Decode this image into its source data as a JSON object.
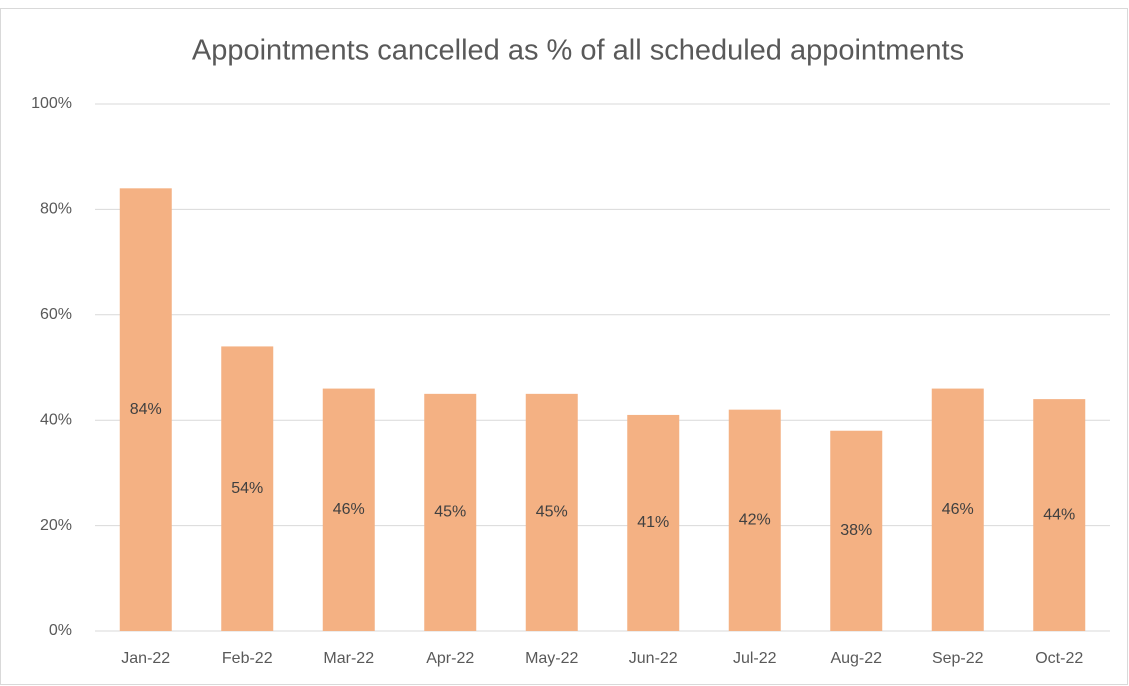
{
  "chart_data": {
    "type": "bar",
    "title": "Appointments cancelled as % of all scheduled appointments",
    "categories": [
      "Jan-22",
      "Feb-22",
      "Mar-22",
      "Apr-22",
      "May-22",
      "Jun-22",
      "Jul-22",
      "Aug-22",
      "Sep-22",
      "Oct-22"
    ],
    "values": [
      84,
      54,
      46,
      45,
      45,
      41,
      42,
      38,
      46,
      44
    ],
    "value_labels": [
      "84%",
      "54%",
      "46%",
      "45%",
      "45%",
      "41%",
      "42%",
      "38%",
      "46%",
      "44%"
    ],
    "color": "#f4b183",
    "ylim": [
      0,
      100
    ],
    "yticks": [
      {
        "value": 0,
        "label": "0%"
      },
      {
        "value": 20,
        "label": "20%"
      },
      {
        "value": 40,
        "label": "40%"
      },
      {
        "value": 60,
        "label": "60%"
      },
      {
        "value": 80,
        "label": "80%"
      },
      {
        "value": 100,
        "label": "100%"
      }
    ],
    "grid": true
  }
}
